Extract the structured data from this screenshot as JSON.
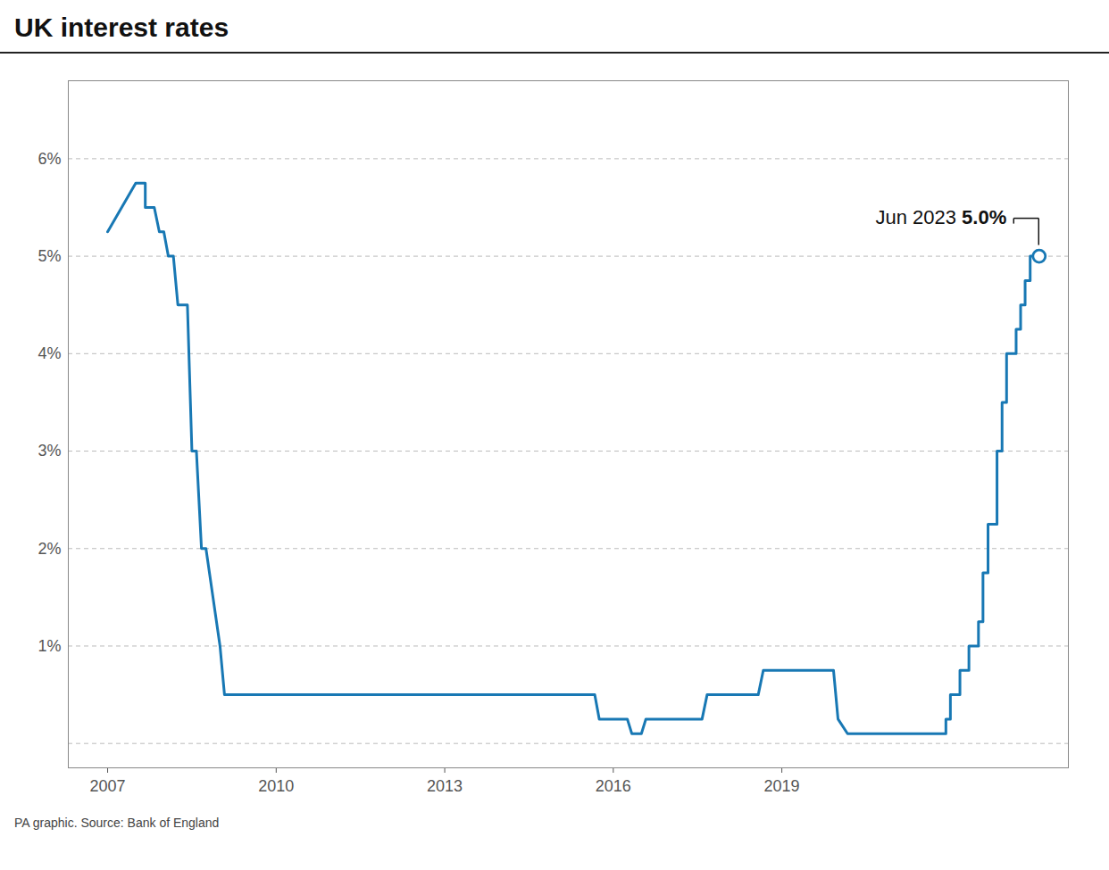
{
  "chart_data": {
    "type": "line",
    "title": "UK interest rates",
    "caption": "PA graphic. Source: Bank of England",
    "color": "#1878b4",
    "grid": true,
    "x": [
      2007.0,
      2007.25,
      2007.5,
      2007.67,
      2007.67,
      2007.83,
      2007.92,
      2008.0,
      2008.08,
      2008.17,
      2008.25,
      2008.42,
      2008.5,
      2008.58,
      2008.67,
      2008.75,
      2009.0,
      2009.08,
      2009.17,
      2015.5,
      2015.67,
      2015.75,
      2015.83,
      2016.25,
      2016.33,
      2016.5,
      2016.58,
      2016.75,
      2017.58,
      2017.67,
      2017.83,
      2018.58,
      2018.67,
      2018.83,
      2019.92,
      2020.0,
      2020.17,
      2020.25,
      2021.92,
      2021.92,
      2022.0,
      2022.0,
      2022.17,
      2022.17,
      2022.33,
      2022.33,
      2022.5,
      2022.5,
      2022.58,
      2022.58,
      2022.67,
      2022.67,
      2022.83,
      2022.83,
      2022.92,
      2022.92,
      2023.0,
      2023.0,
      2023.17,
      2023.17,
      2023.25,
      2023.25,
      2023.33,
      2023.33,
      2023.42,
      2023.42,
      2023.58
    ],
    "values": [
      5.25,
      5.5,
      5.75,
      5.75,
      5.5,
      5.5,
      5.25,
      5.25,
      5.0,
      5.0,
      4.5,
      4.5,
      3.0,
      3.0,
      2.0,
      2.0,
      1.0,
      0.5,
      0.5,
      0.5,
      0.5,
      0.25,
      0.25,
      0.25,
      0.1,
      0.1,
      0.25,
      0.25,
      0.25,
      0.5,
      0.5,
      0.5,
      0.75,
      0.75,
      0.75,
      0.25,
      0.1,
      0.1,
      0.1,
      0.25,
      0.25,
      0.5,
      0.5,
      0.75,
      0.75,
      1.0,
      1.0,
      1.25,
      1.25,
      1.75,
      1.75,
      2.25,
      2.25,
      3.0,
      3.0,
      3.5,
      3.5,
      4.0,
      4.0,
      4.25,
      4.25,
      4.5,
      4.5,
      4.75,
      4.75,
      5.0,
      5.0
    ],
    "xlim": [
      2006.3,
      2024.1
    ],
    "xticks": [
      2007,
      2010,
      2013,
      2016,
      2019
    ],
    "ylim": [
      -0.25,
      6.8
    ],
    "yticks": [
      {
        "value": 0,
        "label": null
      },
      {
        "value": 1,
        "label": "1%"
      },
      {
        "value": 2,
        "label": "2%"
      },
      {
        "value": 3,
        "label": "3%"
      },
      {
        "value": 4,
        "label": "4%"
      },
      {
        "value": 5,
        "label": "5%"
      },
      {
        "value": 6,
        "label": "6%"
      }
    ],
    "annotations": [
      {
        "x": 2023.58,
        "y": 5.0,
        "text": "Jun 2023 ",
        "value_label": "5.0%"
      }
    ]
  }
}
